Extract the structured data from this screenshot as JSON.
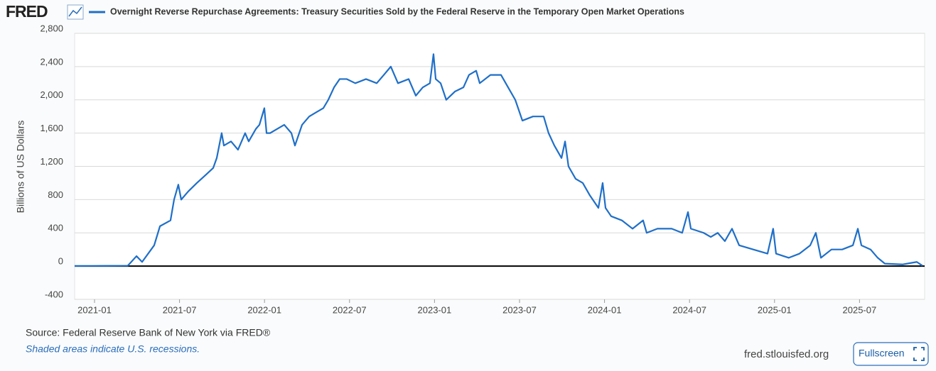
{
  "logo": "FRED",
  "chart_data": {
    "type": "line",
    "y_label": "Billions of US Dollars",
    "x": [
      2020.883,
      2021.071,
      2021.196,
      2021.247,
      2021.28,
      2021.351,
      2021.385,
      2021.447,
      2021.468,
      2021.493,
      2021.51,
      2021.552,
      2021.602,
      2021.656,
      2021.698,
      2021.719,
      2021.748,
      2021.761,
      2021.803,
      2021.844,
      2021.886,
      2021.907,
      2021.949,
      2021.97,
      2021.999,
      2022.012,
      2022.033,
      2022.074,
      2022.116,
      2022.158,
      2022.179,
      2022.221,
      2022.263,
      2022.304,
      2022.346,
      2022.375,
      2022.409,
      2022.442,
      2022.484,
      2022.534,
      2022.597,
      2022.66,
      2022.702,
      2022.743,
      2022.785,
      2022.848,
      2022.89,
      2022.931,
      2022.973,
      2022.994,
      2023.007,
      2023.036,
      2023.069,
      2023.12,
      2023.17,
      2023.203,
      2023.245,
      2023.266,
      2023.329,
      2023.391,
      2023.433,
      2023.475,
      2023.517,
      2023.579,
      2023.642,
      2023.671,
      2023.705,
      2023.747,
      2023.768,
      2023.788,
      2023.83,
      2023.872,
      2023.914,
      2023.964,
      2023.989,
      2024.006,
      2024.039,
      2024.102,
      2024.165,
      2024.227,
      2024.248,
      2024.311,
      2024.395,
      2024.457,
      2024.491,
      2024.508,
      2024.583,
      2024.625,
      2024.666,
      2024.708,
      2024.75,
      2024.792,
      2024.875,
      2024.959,
      2024.992,
      2025.009,
      2025.084,
      2025.147,
      2025.21,
      2025.243,
      2025.273,
      2025.335,
      2025.398,
      2025.461,
      2025.49,
      2025.511,
      2025.565,
      2025.607,
      2025.649,
      2025.753,
      2025.837,
      2025.87
    ],
    "series": [
      {
        "name": "Overnight Reverse Repurchase Agreements: Treasury Securities Sold by the Federal Reserve in the Temporary Open Market Operations",
        "color": "#1f6fc8",
        "values": [
          2,
          3,
          5,
          120,
          50,
          250,
          480,
          550,
          800,
          980,
          800,
          900,
          1000,
          1100,
          1180,
          1300,
          1600,
          1450,
          1500,
          1400,
          1600,
          1500,
          1650,
          1700,
          1900,
          1600,
          1600,
          1650,
          1700,
          1600,
          1450,
          1700,
          1800,
          1850,
          1900,
          2000,
          2150,
          2250,
          2250,
          2200,
          2250,
          2200,
          2300,
          2400,
          2200,
          2250,
          2050,
          2150,
          2200,
          2550,
          2250,
          2200,
          2000,
          2100,
          2150,
          2300,
          2350,
          2200,
          2300,
          2300,
          2150,
          2000,
          1750,
          1800,
          1800,
          1600,
          1450,
          1300,
          1500,
          1200,
          1050,
          1000,
          850,
          700,
          1000,
          700,
          600,
          550,
          450,
          550,
          400,
          450,
          450,
          400,
          650,
          450,
          400,
          350,
          400,
          300,
          450,
          250,
          200,
          150,
          450,
          150,
          100,
          150,
          250,
          400,
          100,
          200,
          200,
          250,
          450,
          250,
          200,
          100,
          30,
          20,
          50,
          5
        ]
      }
    ],
    "xlim": [
      2020.883,
      2025.883
    ],
    "xticks": [
      {
        "value": 2021.0,
        "label": "2021-01"
      },
      {
        "value": 2021.5,
        "label": "2021-07"
      },
      {
        "value": 2022.0,
        "label": "2022-01"
      },
      {
        "value": 2022.5,
        "label": "2022-07"
      },
      {
        "value": 2023.0,
        "label": "2023-01"
      },
      {
        "value": 2023.5,
        "label": "2023-07"
      },
      {
        "value": 2024.0,
        "label": "2024-01"
      },
      {
        "value": 2024.5,
        "label": "2024-07"
      },
      {
        "value": 2025.0,
        "label": "2025-01"
      },
      {
        "value": 2025.5,
        "label": "2025-07"
      }
    ],
    "ylim": [
      -400,
      2800
    ],
    "yticks": [
      -400,
      0,
      400,
      800,
      {
        "value": 1200,
        "label": "1,200"
      },
      {
        "value": 1600,
        "label": "1,600"
      },
      {
        "value": 2000,
        "label": "2,000"
      },
      {
        "value": 2400,
        "label": "2,400"
      },
      {
        "value": 2800,
        "label": "2,800"
      }
    ],
    "grid": true
  },
  "footer": {
    "source": "Source: Federal Reserve Bank of New York via FRED®",
    "note": "Shaded areas indicate U.S. recessions.",
    "site": "fred.stlouisfed.org",
    "button": "Fullscreen"
  }
}
